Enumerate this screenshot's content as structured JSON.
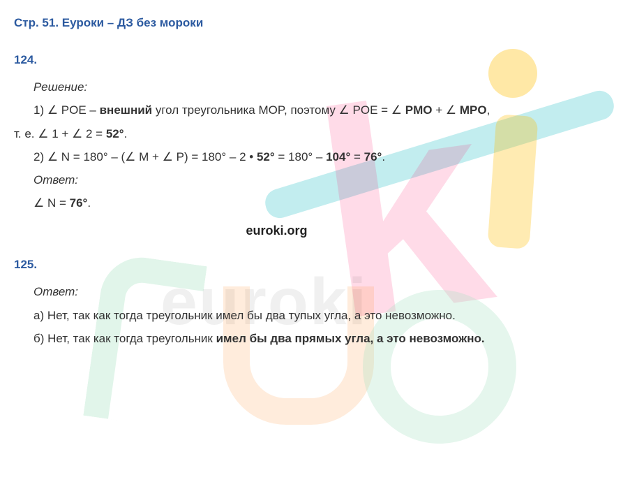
{
  "page": {
    "title": "Стр. 51. Еуроки – ДЗ без мороки"
  },
  "watermark": {
    "site": "euroki.org",
    "faded": "euroki"
  },
  "p124": {
    "number": "124.",
    "solution_label": "Решение:",
    "line1_a": "1) ∠ POE – ",
    "line1_b": "внешний",
    "line1_c": " угол треугольника MOP, поэтому ∠ POE = ∠ ",
    "line1_d": "PMO",
    "line1_e": " + ∠ ",
    "line1_f": "MPO",
    "line1_g": ",",
    "line2_a": "т. е. ∠ 1 + ∠ 2 = ",
    "line2_b": "52°",
    "line2_c": ".",
    "line3_a": "2) ∠ N = 180° – (∠ M + ∠ P) = 180° – 2 • ",
    "line3_b": "52°",
    "line3_c": " = 180° – ",
    "line3_d": "104°",
    "line3_e": " = ",
    "line3_f": "76°",
    "line3_g": ".",
    "answer_label": "Ответ:",
    "ans_a": "∠ N = ",
    "ans_b": "76°",
    "ans_c": "."
  },
  "p125": {
    "number": "125.",
    "answer_label": "Ответ:",
    "a_text": "а) Нет, так как тогда треугольник имел бы два тупых угла, а это невозможно.",
    "b_a": "б) Нет, так как тогда треугольник ",
    "b_b": "имел бы два прямых угла, а это невозможно."
  },
  "styling": {
    "text_color": "#333333",
    "heading_color": "#2c5aa0",
    "background": "#ffffff",
    "font_size_pt": 13,
    "watermark_pink": "rgba(255,0,90,0.14)",
    "watermark_yellow": "rgba(255,190,0,0.33)",
    "watermark_teal": "rgba(120,215,220,0.45)",
    "watermark_green": "rgba(170,225,195,0.33)",
    "watermark_orange": "rgba(255,150,60,0.18)"
  }
}
